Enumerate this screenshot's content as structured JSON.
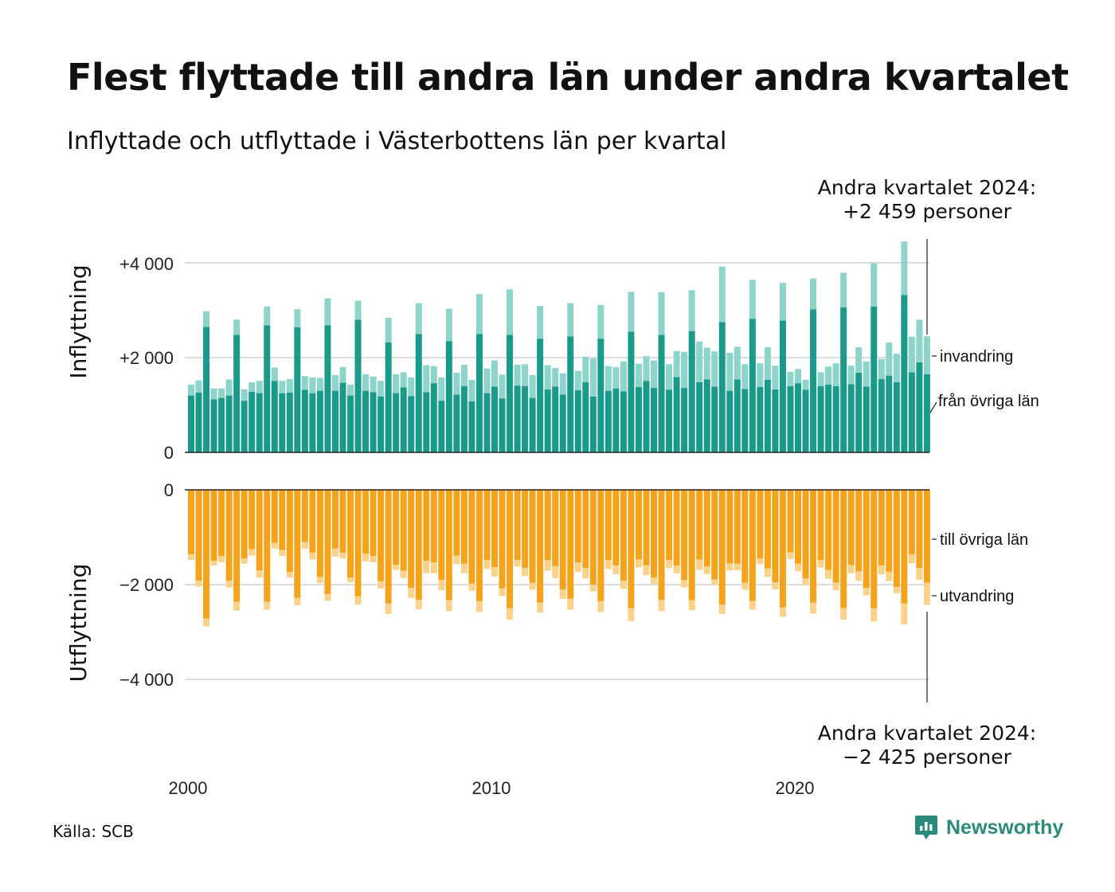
{
  "title": "Flest flyttade till andra län under andra kvartalet",
  "subtitle": "Inflyttade och utflyttade i Västerbottens län per kvartal",
  "source": "Källa: SCB",
  "brand": "Newsworthy",
  "colors": {
    "inflytt_lan": "#1a9a8a",
    "invandring": "#8dd5cb",
    "utflytt_lan": "#f5a31a",
    "utvandring": "#fbd28a",
    "grid": "#dddddd"
  },
  "chart_data": {
    "type": "bar",
    "x": {
      "start_year": 2000,
      "start_quarter": 1,
      "ticks": [
        "2000",
        "2010",
        "2020"
      ]
    },
    "top_panel": {
      "ylabel": "Inflyttning",
      "ylim": [
        0,
        4500
      ],
      "ticks": [
        "0",
        "+2 000",
        "+4 000"
      ],
      "annotation_top": "Andra kvartalet 2024:",
      "annotation_bottom": "+2 459 personer",
      "series": [
        {
          "name": "från övriga län",
          "values": [
            1200,
            1260,
            2650,
            1120,
            1150,
            1200,
            2480,
            1090,
            1280,
            1250,
            2680,
            1510,
            1250,
            1260,
            2640,
            1320,
            1250,
            1300,
            2680,
            1300,
            1470,
            1200,
            2800,
            1300,
            1270,
            1180,
            2320,
            1250,
            1370,
            1190,
            2500,
            1270,
            1460,
            1090,
            2350,
            1220,
            1400,
            1080,
            2500,
            1250,
            1390,
            1140,
            2480,
            1410,
            1400,
            1150,
            2400,
            1330,
            1390,
            1220,
            2450,
            1310,
            1480,
            1180,
            2400,
            1300,
            1350,
            1290,
            2550,
            1380,
            1510,
            1360,
            2480,
            1320,
            1590,
            1360,
            2560,
            1480,
            1540,
            1390,
            2750,
            1300,
            1540,
            1340,
            2820,
            1380,
            1530,
            1330,
            2780,
            1400,
            1460,
            1320,
            3020,
            1400,
            1430,
            1400,
            3060,
            1440,
            1680,
            1390,
            3080,
            1550,
            1620,
            1480,
            3320,
            1690,
            1900,
            1650
          ]
        },
        {
          "name": "invandring",
          "values": [
            230,
            260,
            330,
            230,
            200,
            340,
            320,
            240,
            200,
            260,
            400,
            280,
            260,
            290,
            380,
            290,
            330,
            270,
            570,
            330,
            330,
            230,
            400,
            350,
            330,
            330,
            520,
            400,
            320,
            390,
            650,
            570,
            360,
            490,
            680,
            460,
            450,
            450,
            840,
            520,
            550,
            500,
            960,
            440,
            460,
            480,
            690,
            510,
            390,
            450,
            700,
            410,
            540,
            800,
            710,
            520,
            450,
            630,
            840,
            490,
            520,
            580,
            900,
            540,
            550,
            760,
            860,
            860,
            670,
            740,
            1170,
            800,
            690,
            520,
            820,
            500,
            690,
            500,
            800,
            300,
            300,
            210,
            650,
            290,
            380,
            480,
            730,
            390,
            540,
            530,
            910,
            420,
            700,
            600,
            1130,
            750,
            900,
            800
          ]
        }
      ]
    },
    "bottom_panel": {
      "ylabel": "Utflyttning",
      "ylim": [
        -4500,
        0
      ],
      "ticks": [
        "0",
        "−2 000",
        "−4 000"
      ],
      "annotation_top": "Andra kvartalet 2024:",
      "annotation_bottom": "−2 425 personer",
      "series": [
        {
          "name": "till övriga län",
          "values": [
            -1360,
            -1920,
            -2720,
            -1500,
            -1400,
            -1920,
            -2360,
            -1450,
            -1250,
            -1700,
            -2360,
            -1120,
            -1270,
            -1730,
            -2280,
            -1100,
            -1330,
            -1840,
            -2200,
            -1240,
            -1330,
            -1850,
            -2250,
            -1350,
            -1400,
            -1930,
            -2400,
            -1580,
            -1710,
            -2070,
            -2320,
            -1500,
            -1530,
            -1900,
            -2330,
            -1390,
            -1560,
            -1980,
            -2350,
            -1480,
            -1630,
            -2080,
            -2500,
            -1480,
            -1650,
            -1960,
            -2380,
            -1480,
            -1610,
            -2100,
            -2300,
            -1530,
            -1650,
            -2000,
            -2350,
            -1480,
            -1600,
            -1920,
            -2500,
            -1470,
            -1600,
            -1850,
            -2320,
            -1480,
            -1600,
            -1910,
            -2330,
            -1470,
            -1620,
            -1890,
            -2420,
            -1560,
            -1560,
            -1960,
            -2350,
            -1450,
            -1660,
            -1950,
            -2480,
            -1320,
            -1560,
            -1870,
            -2380,
            -1480,
            -1690,
            -1960,
            -2500,
            -1590,
            -1720,
            -2070,
            -2500,
            -1600,
            -1730,
            -2050,
            -2400,
            -1360,
            -1650,
            -1960
          ]
        },
        {
          "name": "utvandring",
          "values": [
            -120,
            -120,
            -160,
            -100,
            -130,
            -140,
            -190,
            -110,
            -140,
            -150,
            -170,
            -120,
            -130,
            -120,
            -160,
            -140,
            -140,
            -130,
            -140,
            -170,
            -120,
            -100,
            -170,
            -160,
            -130,
            -150,
            -220,
            -110,
            -150,
            -210,
            -200,
            -260,
            -230,
            -220,
            -230,
            -180,
            -200,
            -150,
            -230,
            -190,
            -200,
            -160,
            -240,
            -140,
            -170,
            -150,
            -210,
            -230,
            -250,
            -200,
            -230,
            -200,
            -220,
            -140,
            -230,
            -190,
            -180,
            -170,
            -270,
            -170,
            -200,
            -140,
            -240,
            -170,
            -160,
            -150,
            -210,
            -220,
            -160,
            -120,
            -200,
            -140,
            -140,
            -150,
            -180,
            -120,
            -180,
            -150,
            -200,
            -140,
            -160,
            -140,
            -230,
            -160,
            -190,
            -160,
            -240,
            -170,
            -200,
            -160,
            -280,
            -180,
            -200,
            -130,
            -440,
            -190,
            -250,
            -465
          ]
        }
      ]
    }
  }
}
